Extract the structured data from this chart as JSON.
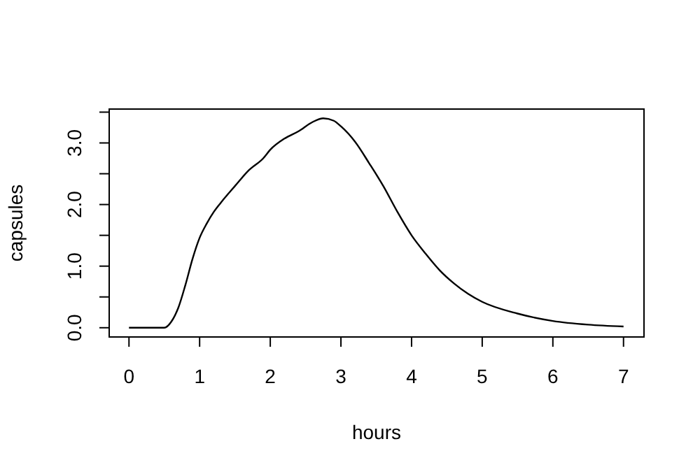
{
  "chart_data": {
    "type": "line",
    "xlabel": "hours",
    "ylabel": "capsules",
    "x": [
      0,
      0.5,
      0.6,
      0.7,
      0.8,
      0.9,
      1.0,
      1.1,
      1.2,
      1.3,
      1.5,
      1.7,
      1.9,
      2.0,
      2.2,
      2.4,
      2.6,
      2.75,
      2.9,
      3.0,
      3.2,
      3.4,
      3.6,
      3.8,
      4.0,
      4.2,
      4.4,
      4.6,
      4.8,
      5.0,
      5.5,
      6.0,
      6.5,
      7.0
    ],
    "series": [
      {
        "color": "#000000",
        "values": [
          0,
          0,
          0.1,
          0.33,
          0.7,
          1.12,
          1.46,
          1.69,
          1.88,
          2.03,
          2.3,
          2.56,
          2.75,
          2.89,
          3.07,
          3.19,
          3.34,
          3.4,
          3.36,
          3.27,
          3.02,
          2.67,
          2.3,
          1.88,
          1.5,
          1.2,
          0.93,
          0.72,
          0.55,
          0.42,
          0.23,
          0.11,
          0.05,
          0.02
        ]
      }
    ],
    "xlim": [
      -0.28,
      7.29
    ],
    "ylim": [
      -0.15,
      3.55
    ],
    "xticks": [
      0,
      1,
      2,
      3,
      4,
      5,
      6,
      7
    ],
    "yticks": [
      {
        "value": 0,
        "label": "0.0"
      },
      {
        "value": 0.5,
        "label": null
      },
      {
        "value": 1,
        "label": "1.0"
      },
      {
        "value": 1.5,
        "label": null
      },
      {
        "value": 2,
        "label": "2.0"
      },
      {
        "value": 2.5,
        "label": null
      },
      {
        "value": 3,
        "label": "3.0"
      },
      {
        "value": 3.5,
        "label": null
      }
    ],
    "marker": "none",
    "line_style": "solid"
  }
}
